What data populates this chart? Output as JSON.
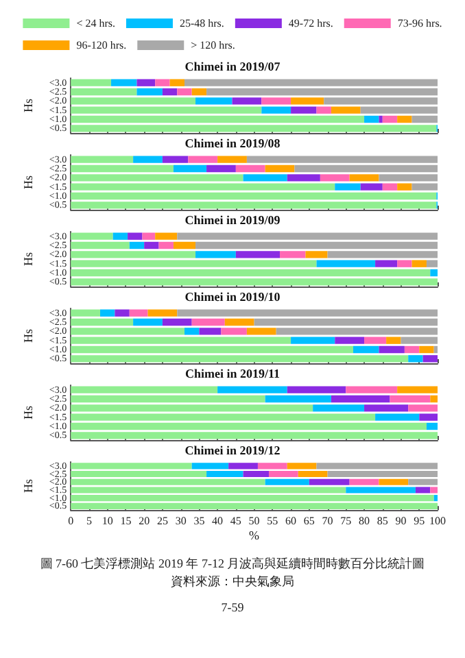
{
  "chart_data": [
    {
      "type": "bar",
      "orientation": "horizontal",
      "stacked": true,
      "title": "Chimei in 2019/07",
      "ylabel": "Hs",
      "categories": [
        "<3.0",
        "<2.5",
        "<2.0",
        "<1.5",
        "<1.0",
        "<0.5"
      ],
      "xlim": [
        0,
        100
      ],
      "xticks": [
        0,
        5,
        10,
        15,
        20,
        25,
        30,
        35,
        40,
        45,
        50,
        55,
        60,
        65,
        70,
        75,
        80,
        85,
        90,
        95,
        100
      ],
      "tick_labels": "y",
      "legend": "top",
      "series": [
        {
          "name": "< 24 hrs.",
          "color": "#90ee90",
          "values": [
            11,
            18,
            34,
            52,
            80,
            99.7
          ]
        },
        {
          "name": "25-48 hrs.",
          "color": "#00bfff",
          "values": [
            7,
            7,
            10,
            8,
            4,
            0.3
          ]
        },
        {
          "name": "49-72 hrs.",
          "color": "#8a2be2",
          "values": [
            5,
            4,
            8,
            7,
            1,
            0
          ]
        },
        {
          "name": "73-96 hrs.",
          "color": "#ff69b4",
          "values": [
            4,
            4,
            8,
            4,
            4,
            0
          ]
        },
        {
          "name": "96-120 hrs.",
          "color": "#ffa500",
          "values": [
            4,
            4,
            9,
            8,
            4,
            0
          ]
        },
        {
          "name": "> 120 hrs.",
          "color": "#a9a9a9",
          "values": [
            69,
            63,
            31,
            21,
            7,
            0
          ]
        }
      ]
    },
    {
      "type": "bar",
      "orientation": "horizontal",
      "stacked": true,
      "title": "Chimei in 2019/08",
      "ylabel": "Hs",
      "categories": [
        "<3.0",
        "<2.5",
        "<2.0",
        "<1.5",
        "<1.0",
        "<0.5"
      ],
      "xlim": [
        0,
        100
      ],
      "xticks": [
        0,
        5,
        10,
        15,
        20,
        25,
        30,
        35,
        40,
        45,
        50,
        55,
        60,
        65,
        70,
        75,
        80,
        85,
        90,
        95,
        100
      ],
      "tick_labels": "y",
      "series": [
        {
          "color": "#90ee90",
          "values": [
            17,
            28,
            47,
            72,
            99.7,
            99.7
          ]
        },
        {
          "color": "#00bfff",
          "values": [
            8,
            9,
            12,
            7,
            0.3,
            0.3
          ]
        },
        {
          "color": "#8a2be2",
          "values": [
            7,
            8,
            9,
            6,
            0,
            0
          ]
        },
        {
          "color": "#ff69b4",
          "values": [
            8,
            8,
            8,
            4,
            0,
            0
          ]
        },
        {
          "color": "#ffa500",
          "values": [
            8,
            8,
            8,
            4,
            0,
            0
          ]
        },
        {
          "color": "#a9a9a9",
          "values": [
            52,
            39,
            16,
            7,
            0,
            0
          ]
        }
      ]
    },
    {
      "type": "bar",
      "orientation": "horizontal",
      "stacked": true,
      "title": "Chimei in 2019/09",
      "ylabel": "Hs",
      "categories": [
        "<3.0",
        "<2.5",
        "<2.0",
        "<1.5",
        "<1.0",
        "<0.5"
      ],
      "xlim": [
        0,
        100
      ],
      "xticks": [
        0,
        5,
        10,
        15,
        20,
        25,
        30,
        35,
        40,
        45,
        50,
        55,
        60,
        65,
        70,
        75,
        80,
        85,
        90,
        95,
        100
      ],
      "tick_labels": "y",
      "series": [
        {
          "color": "#90ee90",
          "values": [
            11.5,
            16,
            34,
            67,
            98,
            100
          ]
        },
        {
          "color": "#00bfff",
          "values": [
            4,
            4,
            11,
            16,
            2,
            0
          ]
        },
        {
          "color": "#8a2be2",
          "values": [
            4,
            4,
            12,
            6,
            0,
            0
          ]
        },
        {
          "color": "#ff69b4",
          "values": [
            3.5,
            4,
            7,
            4,
            0,
            0
          ]
        },
        {
          "color": "#ffa500",
          "values": [
            6,
            6,
            6,
            4,
            0,
            0
          ]
        },
        {
          "color": "#a9a9a9",
          "values": [
            71,
            66,
            30,
            3,
            0,
            0
          ]
        }
      ]
    },
    {
      "type": "bar",
      "orientation": "horizontal",
      "stacked": true,
      "title": "Chimei in 2019/10",
      "ylabel": "Hs",
      "categories": [
        "<3.0",
        "<2.5",
        "<2.0",
        "<1.5",
        "<1.0",
        "<0.5"
      ],
      "xlim": [
        0,
        100
      ],
      "xticks": [
        0,
        5,
        10,
        15,
        20,
        25,
        30,
        35,
        40,
        45,
        50,
        55,
        60,
        65,
        70,
        75,
        80,
        85,
        90,
        95,
        100
      ],
      "tick_labels": "y",
      "series": [
        {
          "color": "#90ee90",
          "values": [
            8,
            17,
            31,
            60,
            77,
            92
          ]
        },
        {
          "color": "#00bfff",
          "values": [
            4,
            8,
            4,
            12,
            7,
            4
          ]
        },
        {
          "color": "#8a2be2",
          "values": [
            4,
            8,
            6,
            8,
            7,
            4
          ]
        },
        {
          "color": "#ff69b4",
          "values": [
            5,
            9,
            7,
            6,
            4,
            0
          ]
        },
        {
          "color": "#ffa500",
          "values": [
            8,
            8,
            8,
            4,
            4,
            0
          ]
        },
        {
          "color": "#a9a9a9",
          "values": [
            71,
            50,
            44,
            10,
            1,
            0
          ]
        }
      ]
    },
    {
      "type": "bar",
      "orientation": "horizontal",
      "stacked": true,
      "title": "Chimei in 2019/11",
      "ylabel": "Hs",
      "categories": [
        "<3.0",
        "<2.5",
        "<2.0",
        "<1.5",
        "<1.0",
        "<0.5"
      ],
      "xlim": [
        0,
        100
      ],
      "xticks": [
        0,
        5,
        10,
        15,
        20,
        25,
        30,
        35,
        40,
        45,
        50,
        55,
        60,
        65,
        70,
        75,
        80,
        85,
        90,
        95,
        100
      ],
      "tick_labels": "y",
      "series": [
        {
          "color": "#90ee90",
          "values": [
            40,
            53,
            66,
            83,
            97,
            100
          ]
        },
        {
          "color": "#00bfff",
          "values": [
            19,
            18,
            14,
            12,
            3,
            0
          ]
        },
        {
          "color": "#8a2be2",
          "values": [
            16,
            16,
            12,
            5,
            0,
            0
          ]
        },
        {
          "color": "#ff69b4",
          "values": [
            14,
            11,
            8,
            0,
            0,
            0
          ]
        },
        {
          "color": "#ffa500",
          "values": [
            11,
            2,
            0,
            0,
            0,
            0
          ]
        },
        {
          "color": "#a9a9a9",
          "values": [
            0,
            0,
            0,
            0,
            0,
            0
          ]
        }
      ]
    },
    {
      "type": "bar",
      "orientation": "horizontal",
      "stacked": true,
      "title": "Chimei in 2019/12",
      "ylabel": "Hs",
      "xlabel": "%",
      "categories": [
        "<3.0",
        "<2.5",
        "<2.0",
        "<1.5",
        "<1.0",
        "<0.5"
      ],
      "xlim": [
        0,
        100
      ],
      "xticks": [
        0,
        5,
        10,
        15,
        20,
        25,
        30,
        35,
        40,
        45,
        50,
        55,
        60,
        65,
        70,
        75,
        80,
        85,
        90,
        95,
        100
      ],
      "annotations": [
        "圖 7-60 七美浮標測站 2019 年 7-12 月波高與延續時間時數百分比統計圖",
        "資料來源：中央氣象局",
        "7-59"
      ],
      "series": [
        {
          "color": "#90ee90",
          "values": [
            33,
            37,
            53,
            75,
            99,
            100
          ]
        },
        {
          "color": "#00bfff",
          "values": [
            10,
            10,
            12,
            19,
            1,
            0
          ]
        },
        {
          "color": "#8a2be2",
          "values": [
            8,
            7,
            11,
            4,
            0,
            0
          ]
        },
        {
          "color": "#ff69b4",
          "values": [
            8,
            8,
            8,
            2,
            0,
            0
          ]
        },
        {
          "color": "#ffa500",
          "values": [
            8,
            8,
            8,
            0,
            0,
            0
          ]
        },
        {
          "color": "#a9a9a9",
          "values": [
            33,
            30,
            8,
            0,
            0,
            0
          ]
        }
      ]
    }
  ]
}
